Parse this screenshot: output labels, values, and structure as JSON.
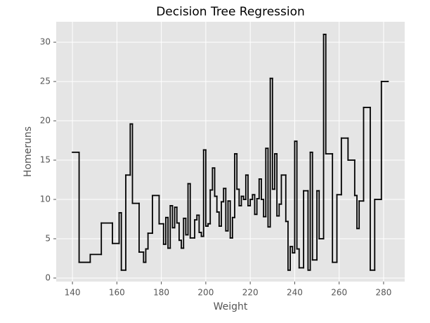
{
  "chart_data": {
    "type": "step",
    "title": "Decision Tree Regression",
    "xlabel": "Weight",
    "ylabel": "Homeruns",
    "x": [
      140,
      143,
      148,
      153,
      158,
      161,
      162,
      164,
      166,
      167,
      170,
      172,
      173,
      174,
      176,
      179,
      181,
      182,
      183,
      184,
      185,
      186,
      187,
      188,
      189,
      190,
      191,
      192,
      193,
      195,
      196,
      197,
      198,
      199,
      200,
      201,
      202,
      203,
      204,
      205,
      206,
      207,
      208,
      209,
      210,
      211,
      212,
      213,
      214,
      215,
      216,
      217,
      218,
      219,
      220,
      221,
      222,
      223,
      224,
      225,
      226,
      227,
      228,
      229,
      230,
      231,
      232,
      233,
      234,
      236,
      237,
      238,
      239,
      240,
      241,
      242,
      244,
      246,
      247,
      248,
      250,
      251,
      253,
      254,
      257,
      259,
      261,
      264,
      267,
      268,
      269,
      271,
      274,
      276,
      279,
      282
    ],
    "values": [
      16,
      2,
      3,
      7,
      4.4,
      8.3,
      1,
      13.1,
      19.6,
      9.5,
      3.3,
      2,
      3.7,
      5.7,
      10.5,
      6.9,
      4.3,
      7.7,
      3.8,
      9.2,
      6.4,
      9,
      7,
      4.8,
      3.8,
      7.6,
      5.5,
      12,
      5.1,
      7.4,
      8,
      5.8,
      5.3,
      16.3,
      6.6,
      6.9,
      11.2,
      14,
      10.4,
      8.4,
      6.6,
      9.7,
      11.4,
      6,
      9.8,
      5.1,
      7.7,
      15.8,
      11.3,
      9.2,
      10.4,
      10,
      13.1,
      9.2,
      10,
      10.6,
      8.1,
      10.1,
      12.6,
      10,
      7.8,
      16.5,
      6.5,
      25.4,
      11.3,
      15.8,
      7.9,
      9.4,
      13.1,
      7.2,
      1,
      4,
      3.2,
      17.4,
      3.7,
      1.3,
      11.1,
      1,
      16,
      2.3,
      11.1,
      5,
      31,
      15.8,
      2,
      10.6,
      17.8,
      15,
      10.5,
      6.3,
      9.8,
      21.7,
      1,
      10,
      25,
      25
    ],
    "color": "#000000",
    "xlim": [
      132.7,
      289.5
    ],
    "ylim": [
      -0.45,
      32.6
    ],
    "xticks": [
      140,
      160,
      180,
      200,
      220,
      240,
      260,
      280
    ],
    "yticks": [
      0,
      5,
      10,
      15,
      20,
      25,
      30
    ],
    "grid": true
  }
}
